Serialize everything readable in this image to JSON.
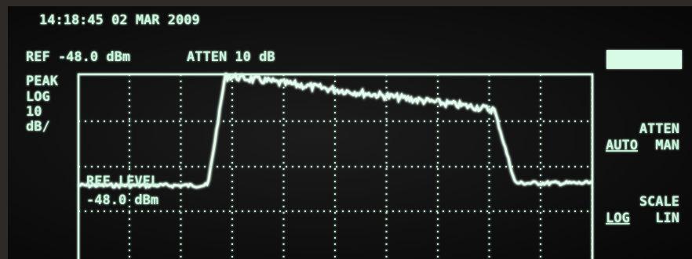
{
  "screen": {
    "timestamp": "14:18:45  02 MAR 2009",
    "ref": "REF -48.0 dBm",
    "atten": "ATTEN 10 dB",
    "left_labels": [
      "PEAK",
      "LOG",
      "10",
      "dB/"
    ],
    "marker_labels": [
      "REF LEVEL",
      "-48.0 dBm"
    ]
  },
  "softkeys": [
    {
      "title": "ATTEN",
      "options": [
        "AUTO",
        "MAN"
      ]
    },
    {
      "title": "SCALE",
      "options": [
        "LOG",
        "LIN"
      ]
    }
  ]
}
